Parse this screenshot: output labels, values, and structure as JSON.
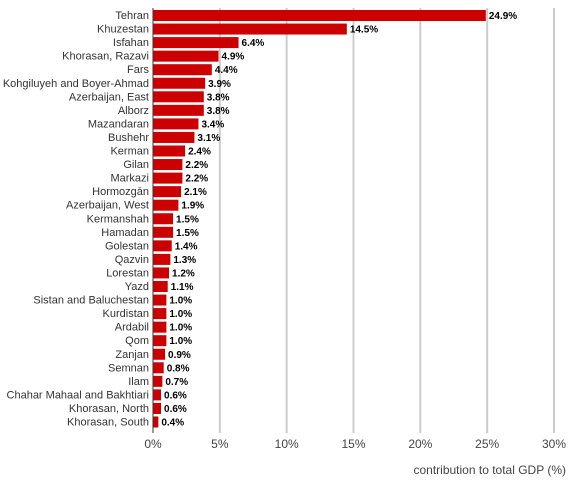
{
  "chart_data": {
    "type": "bar",
    "orientation": "horizontal",
    "categories": [
      "Tehran",
      "Khuzestan",
      "Isfahan",
      "Khorasan, Razavi",
      "Fars",
      "Kohgiluyeh and Boyer-Ahmad",
      "Azerbaijan, East",
      "Alborz",
      "Mazandaran",
      "Bushehr",
      "Kerman",
      "Gilan",
      "Markazi",
      "Hormozgān",
      "Azerbaijan, West",
      "Kermanshah",
      "Hamadan",
      "Golestan",
      "Qazvin",
      "Lorestan",
      "Yazd",
      "Sistan and Baluchestan",
      "Kurdistan",
      "Ardabil",
      "Qom",
      "Zanjan",
      "Semnan",
      "Ilam",
      "Chahar Mahaal and Bakhtiari",
      "Khorasan, North",
      "Khorasan, South"
    ],
    "values": [
      24.9,
      14.5,
      6.4,
      4.9,
      4.4,
      3.9,
      3.8,
      3.8,
      3.4,
      3.1,
      2.4,
      2.2,
      2.2,
      2.1,
      1.9,
      1.5,
      1.5,
      1.4,
      1.3,
      1.2,
      1.1,
      1.0,
      1.0,
      1.0,
      1.0,
      0.9,
      0.8,
      0.7,
      0.6,
      0.6,
      0.4
    ],
    "value_labels": [
      "24.9%",
      "14.5%",
      "6.4%",
      "4.9%",
      "4.4%",
      "3.9%",
      "3.8%",
      "3.8%",
      "3.4%",
      "3.1%",
      "2.4%",
      "2.2%",
      "2.2%",
      "2.1%",
      "1.9%",
      "1.5%",
      "1.5%",
      "1.4%",
      "1.3%",
      "1.2%",
      "1.1%",
      "1.0%",
      "1.0%",
      "1.0%",
      "1.0%",
      "0.9%",
      "0.8%",
      "0.7%",
      "0.6%",
      "0.6%",
      "0.4%"
    ],
    "xticks": [
      0,
      5,
      10,
      15,
      20,
      25,
      30
    ],
    "xtick_labels": [
      "0%",
      "5%",
      "10%",
      "15%",
      "20%",
      "25%",
      "30%"
    ],
    "xlim": [
      0,
      30
    ],
    "xlabel": "contribution to total GDP (%)",
    "title": "",
    "grid": true,
    "bar_color": "#cc0000"
  }
}
